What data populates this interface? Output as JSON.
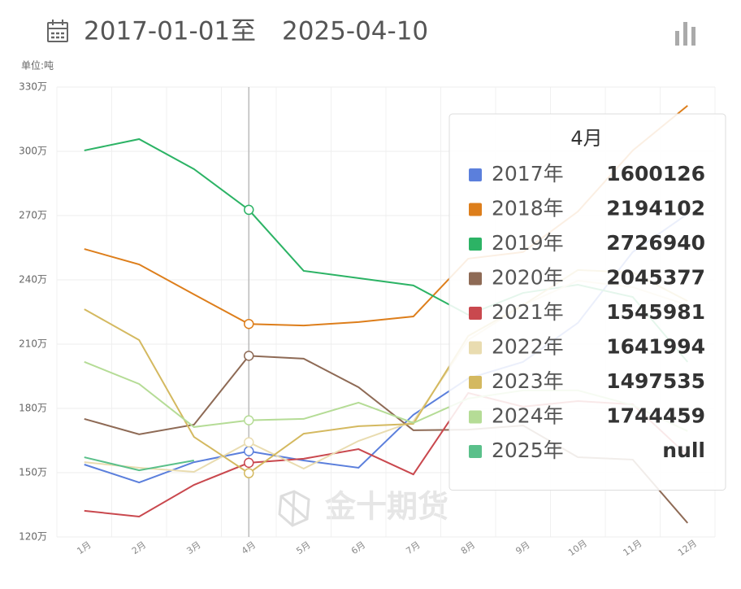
{
  "header": {
    "date_start": "2017-01-01",
    "separator": "至",
    "date_end": "2025-04-10"
  },
  "watermark": "金十期货",
  "chart_data": {
    "type": "line",
    "y_label": "单位:吨",
    "categories": [
      "1月",
      "2月",
      "3月",
      "4月",
      "5月",
      "6月",
      "7月",
      "8月",
      "9月",
      "10月",
      "11月",
      "12月"
    ],
    "ylim": [
      1200000,
      3300000
    ],
    "yticks": [
      {
        "value": 1200000,
        "label": "120万"
      },
      {
        "value": 1500000,
        "label": "150万"
      },
      {
        "value": 1800000,
        "label": "180万"
      },
      {
        "value": 2100000,
        "label": "210万"
      },
      {
        "value": 2400000,
        "label": "240万"
      },
      {
        "value": 2700000,
        "label": "270万"
      },
      {
        "value": 3000000,
        "label": "300万"
      },
      {
        "value": 3300000,
        "label": "330万"
      }
    ],
    "grid": true,
    "tooltip_index": 3,
    "series": [
      {
        "name": "2017年",
        "color": "#5b7fdc",
        "values": [
          1538000,
          1454000,
          1549000,
          1600126,
          1557000,
          1523000,
          1770000,
          1940000,
          2017000,
          2199000,
          2530000,
          2708000
        ]
      },
      {
        "name": "2018年",
        "color": "#dd7e1b",
        "values": [
          2544000,
          2472000,
          2332000,
          2194102,
          2187000,
          2203000,
          2229000,
          2499000,
          2530000,
          2719000,
          3004000,
          3213000
        ]
      },
      {
        "name": "2019年",
        "color": "#2cb365",
        "values": [
          3004000,
          3057000,
          2917000,
          2726940,
          2442000,
          2408000,
          2374000,
          2237000,
          2339000,
          2377000,
          2320000,
          2017000
        ]
      },
      {
        "name": "2020年",
        "color": "#8e6a55",
        "values": [
          1751000,
          1679000,
          1724000,
          2045377,
          2032000,
          1899000,
          1698000,
          1701000,
          1720000,
          1572000,
          1561000,
          1265000
        ]
      },
      {
        "name": "2021年",
        "color": "#c9484e",
        "values": [
          1322000,
          1295000,
          1443000,
          1545981,
          1565000,
          1610000,
          1492000,
          1872000,
          1808000,
          1834000,
          1819000,
          1580000
        ]
      },
      {
        "name": "2022年",
        "color": "#e9dcb0",
        "values": [
          1549000,
          1523000,
          1504000,
          1641994,
          1519000,
          1648000,
          1739000,
          2119000,
          2282000,
          2396000,
          2366000,
          2282000
        ]
      },
      {
        "name": "2023年",
        "color": "#d4b960",
        "values": [
          2263000,
          2119000,
          1667000,
          1497535,
          1682000,
          1717000,
          1728000,
          2138000,
          2282000,
          2446000,
          2434000,
          2301000
        ]
      },
      {
        "name": "2024年",
        "color": "#b5dc96",
        "values": [
          2017000,
          1914000,
          1713000,
          1744459,
          1751000,
          1827000,
          1732000,
          1846000,
          1884000,
          1884000,
          1815000,
          1694000
        ]
      },
      {
        "name": "2025年",
        "color": "#5ac08a",
        "values": [
          1572000,
          1511000,
          1557000,
          null,
          null,
          null,
          null,
          null,
          null,
          null,
          null,
          null
        ]
      }
    ]
  }
}
